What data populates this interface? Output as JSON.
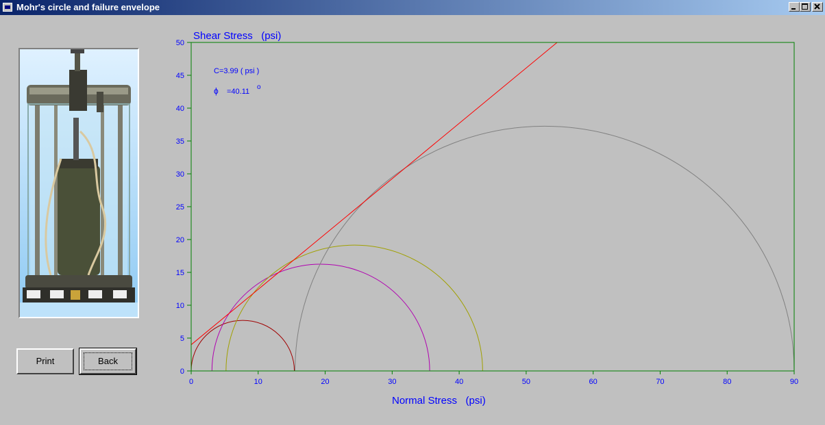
{
  "window": {
    "title": "Mohr's circle and failure envelope",
    "controls": [
      "minimize",
      "maximize",
      "close"
    ]
  },
  "image": {
    "subject": "triaxial test cell apparatus photo"
  },
  "buttons": {
    "print_label": "Print",
    "back_label": "Back"
  },
  "chart_data": {
    "type": "line",
    "ylabel": "Shear Stress   (psi)",
    "xlabel": "Normal Stress   (psi)",
    "xlim": [
      0,
      90
    ],
    "ylim": [
      0,
      50
    ],
    "xticks": [
      "0",
      "10",
      "20",
      "30",
      "40",
      "50",
      "60",
      "70",
      "80",
      "90"
    ],
    "yticks": [
      "0",
      "5",
      "10",
      "15",
      "20",
      "25",
      "30",
      "35",
      "40",
      "45",
      "50"
    ],
    "annotation_c": "C=3.99 ( psi )",
    "annotation_phi_symbol": "ϕ",
    "annotation_phi_value": "=40.11",
    "annotation_phi_unit": "o",
    "envelope": {
      "c": 3.99,
      "phi_deg": 40.11,
      "color": "#ff0000"
    },
    "circles": [
      {
        "sigma3": 0.0,
        "sigma1": 15.4,
        "color": "#a00000"
      },
      {
        "sigma3": 3.1,
        "sigma1": 35.6,
        "color": "#b000b0"
      },
      {
        "sigma3": 5.2,
        "sigma1": 43.5,
        "color": "#a0a000"
      },
      {
        "sigma3": 15.5,
        "sigma1": 90.0,
        "color": "#808080"
      }
    ],
    "frame_color": "#008000",
    "text_color": "#0000ff"
  }
}
